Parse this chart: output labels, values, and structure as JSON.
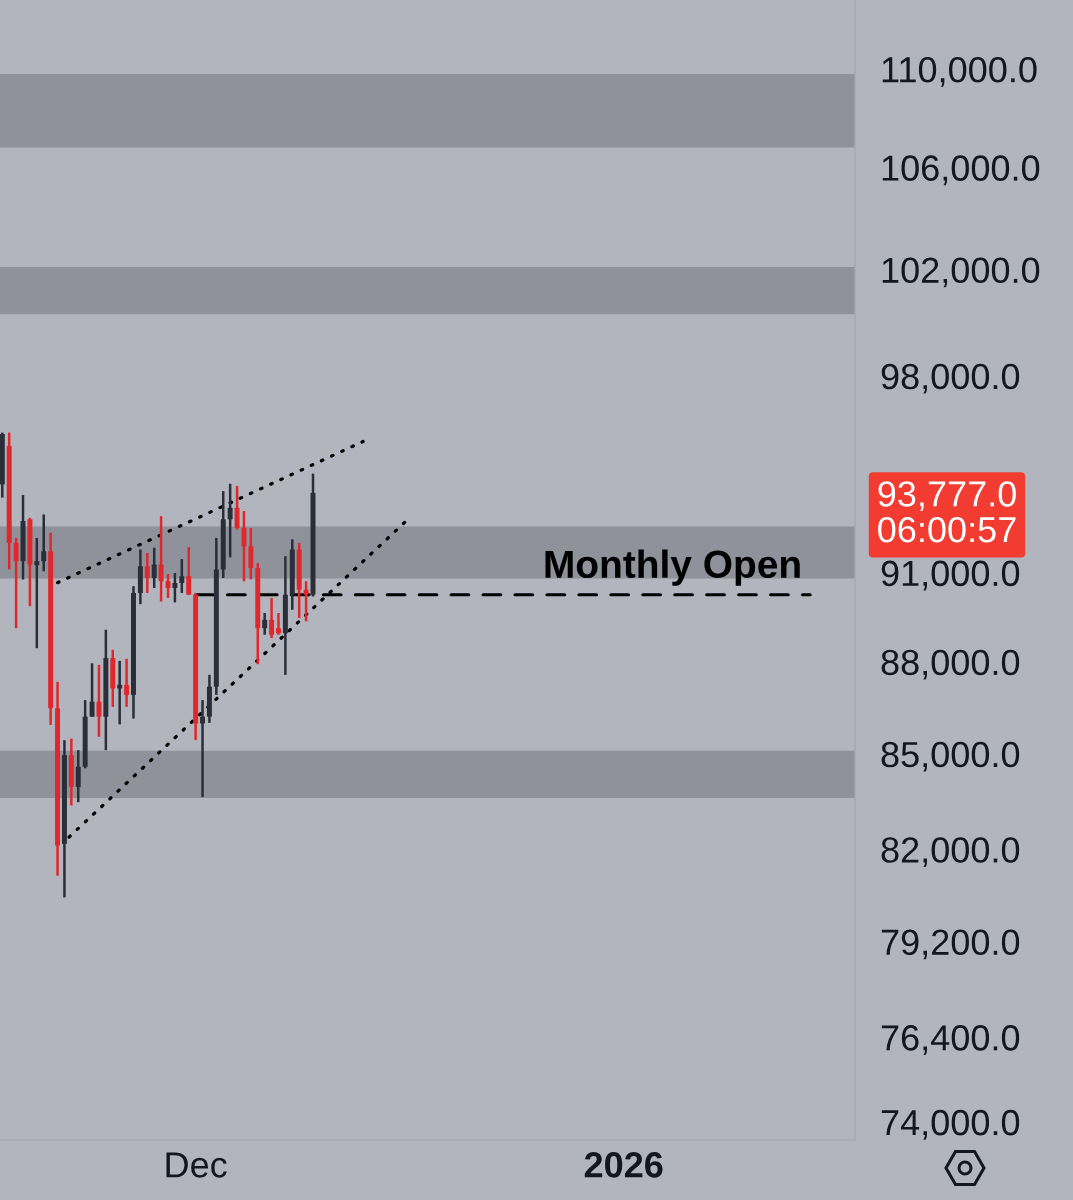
{
  "chart_data": {
    "type": "candlestick",
    "x": [
      "2025-11-17T00:00",
      "2025-11-17T12:00",
      "2025-11-18T00:00",
      "2025-11-18T12:00",
      "2025-11-19T00:00",
      "2025-11-19T12:00",
      "2025-11-20T00:00",
      "2025-11-20T12:00",
      "2025-11-21T00:00",
      "2025-11-21T12:00",
      "2025-11-22T00:00",
      "2025-11-22T12:00",
      "2025-11-23T00:00",
      "2025-11-23T12:00",
      "2025-11-24T00:00",
      "2025-11-24T12:00",
      "2025-11-25T00:00",
      "2025-11-25T12:00",
      "2025-11-26T00:00",
      "2025-11-26T12:00",
      "2025-11-27T00:00",
      "2025-11-27T12:00",
      "2025-11-28T00:00",
      "2025-11-28T12:00",
      "2025-11-29T00:00",
      "2025-11-29T12:00",
      "2025-11-30T00:00",
      "2025-11-30T12:00",
      "2025-12-01T00:00",
      "2025-12-01T12:00",
      "2025-12-02T00:00",
      "2025-12-02T12:00",
      "2025-12-03T00:00",
      "2025-12-03T12:00",
      "2025-12-04T00:00",
      "2025-12-04T12:00",
      "2025-12-05T00:00",
      "2025-12-05T12:00",
      "2025-12-06T00:00",
      "2025-12-06T12:00",
      "2025-12-07T00:00",
      "2025-12-07T12:00",
      "2025-12-08T00:00",
      "2025-12-08T12:00",
      "2025-12-09T00:00",
      "2025-12-09T12:00"
    ],
    "ohlc": [
      [
        94080,
        95930,
        93610,
        95880
      ],
      [
        95450,
        95930,
        91110,
        92030
      ],
      [
        92030,
        92200,
        89120,
        91400
      ],
      [
        91400,
        93700,
        90770,
        92790
      ],
      [
        92850,
        92900,
        89860,
        91280
      ],
      [
        91260,
        92200,
        88450,
        91400
      ],
      [
        91400,
        93020,
        91050,
        91740
      ],
      [
        91740,
        92380,
        85930,
        86470
      ],
      [
        86470,
        87340,
        81190,
        82120
      ],
      [
        82170,
        85440,
        80530,
        84960
      ],
      [
        84960,
        85490,
        83370,
        83950
      ],
      [
        83950,
        85120,
        83470,
        84590
      ],
      [
        84590,
        86740,
        84540,
        86200
      ],
      [
        86200,
        87950,
        86200,
        86690
      ],
      [
        86690,
        87900,
        85550,
        86200
      ],
      [
        86200,
        89070,
        85120,
        88120
      ],
      [
        88120,
        88400,
        86520,
        87120
      ],
      [
        87120,
        88030,
        85950,
        87240
      ],
      [
        87240,
        88100,
        86520,
        86910
      ],
      [
        86910,
        90540,
        86140,
        90310
      ],
      [
        90310,
        91800,
        89930,
        91220
      ],
      [
        91220,
        91680,
        90310,
        90820
      ],
      [
        90820,
        91860,
        90480,
        91280
      ],
      [
        91280,
        92960,
        90020,
        90710
      ],
      [
        90710,
        90960,
        90140,
        90480
      ],
      [
        90480,
        90990,
        89990,
        90650
      ],
      [
        90650,
        91470,
        90310,
        90880
      ],
      [
        90880,
        91880,
        90250,
        90250
      ],
      [
        90250,
        90300,
        85440,
        85980
      ],
      [
        85980,
        86740,
        83630,
        86200
      ],
      [
        86200,
        87570,
        86000,
        87180
      ],
      [
        87180,
        92200,
        86910,
        91110
      ],
      [
        91110,
        93840,
        90820,
        92850
      ],
      [
        92850,
        94100,
        91530,
        93250
      ],
      [
        93250,
        94020,
        92490,
        92550
      ],
      [
        92550,
        93140,
        90710,
        91910
      ],
      [
        91910,
        92550,
        90770,
        91160
      ],
      [
        91160,
        91330,
        87920,
        89120
      ],
      [
        89120,
        89630,
        88900,
        89400
      ],
      [
        89400,
        90140,
        88790,
        88900
      ],
      [
        89120,
        89630,
        88900,
        88950
      ],
      [
        88950,
        91570,
        87570,
        90250
      ],
      [
        90250,
        92150,
        89740,
        91800
      ],
      [
        91800,
        92030,
        89460,
        90420
      ],
      [
        90420,
        90710,
        89350,
        90250
      ],
      [
        90250,
        94460,
        90190,
        93777
      ]
    ],
    "colors": [
      "#2a2e39",
      "#e0282c",
      "#e0282c",
      "#2a2e39",
      "#e0282c",
      "#2a2e39",
      "#2a2e39",
      "#e0282c",
      "#e0282c",
      "#2a2e39",
      "#e0282c",
      "#2a2e39",
      "#2a2e39",
      "#2a2e39",
      "#e0282c",
      "#2a2e39",
      "#e0282c",
      "#2a2e39",
      "#e0282c",
      "#2a2e39",
      "#2a2e39",
      "#e0282c",
      "#2a2e39",
      "#e0282c",
      "#e0282c",
      "#2a2e39",
      "#2a2e39",
      "#e0282c",
      "#e0282c",
      "#2a2e39",
      "#2a2e39",
      "#2a2e39",
      "#2a2e39",
      "#2a2e39",
      "#e0282c",
      "#e0282c",
      "#e0282c",
      "#e0282c",
      "#2a2e39",
      "#e0282c",
      "#e0282c",
      "#2a2e39",
      "#2a2e39",
      "#e0282c",
      "#e0282c",
      "#2a2e39"
    ],
    "series": [
      {
        "type": "line",
        "x": [
          "2025-11-21T00:00",
          "2025-12-13T03:00"
        ],
        "values": [
          90660,
          95610
        ],
        "color": "#000000",
        "line_style": "dotted"
      },
      {
        "type": "line",
        "x": [
          "2025-11-21T20:00",
          "2025-12-16T08:30"
        ],
        "values": [
          82380,
          92840
        ],
        "color": "#000000",
        "line_style": "dotted"
      },
      {
        "type": "line",
        "name": "Monthly Open",
        "x": [
          "2025-12-01T00:00",
          "2026-01-14T12:00"
        ],
        "values": [
          90250,
          90250
        ],
        "color": "#000000",
        "line_style": "dashed"
      }
    ],
    "bands": [
      {
        "axis": "y",
        "from": 106800,
        "to": 109800,
        "color": "#8f929a"
      },
      {
        "axis": "y",
        "from": 100300,
        "to": 102100,
        "color": "#8f929a"
      },
      {
        "axis": "y",
        "from": 90800,
        "to": 92600,
        "color": "#8f929a"
      },
      {
        "axis": "y",
        "from": 83600,
        "to": 85100,
        "color": "#8f929a"
      }
    ],
    "annotations": [
      "93,777.0\n06:00:57"
    ],
    "log": true,
    "xlim": [
      "2025-11-16T20:00",
      "2026-01-17T18:00"
    ],
    "xticks": [
      {
        "value": "2025-12-01",
        "label": "Dec"
      },
      {
        "value": "2026-01-01",
        "label": "2026"
      }
    ],
    "ylim": [
      73500,
      112900
    ],
    "yticks": [
      {
        "value": 110000,
        "label": "110,000.0"
      },
      {
        "value": 106000,
        "label": "106,000.0"
      },
      {
        "value": 102000,
        "label": "102,000.0"
      },
      {
        "value": 98000,
        "label": "98,000.0"
      },
      {
        "value": 91000,
        "label": "91,000.0"
      },
      {
        "value": 88000,
        "label": "88,000.0"
      },
      {
        "value": 85000,
        "label": "85,000.0"
      },
      {
        "value": 82000,
        "label": "82,000.0"
      },
      {
        "value": 79200,
        "label": "79,200.0"
      },
      {
        "value": 76400,
        "label": "76,400.0"
      },
      {
        "value": 74000,
        "label": "74,000.0"
      }
    ]
  }
}
